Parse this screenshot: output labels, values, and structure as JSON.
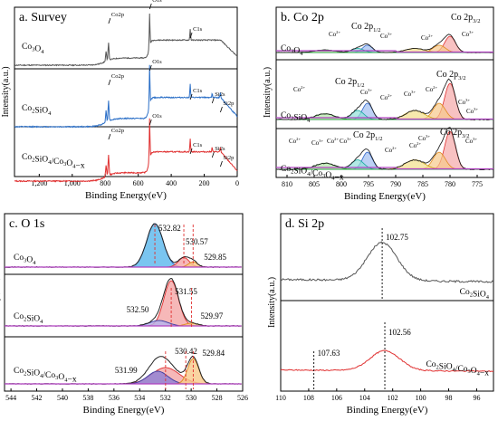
{
  "chart_data": [
    {
      "panel": "a",
      "type": "line",
      "title": "a. Survey",
      "xlabel": "Binding Energy(eV)",
      "ylabel": "Intensity(a.u.)",
      "xlim": [
        1350,
        0
      ],
      "x_reversed": true,
      "xticks": [
        1200,
        1000,
        800,
        600,
        400,
        200,
        0
      ],
      "xtick_labels": [
        "1,200",
        "1,000",
        "800",
        "600",
        "400",
        "200",
        "0"
      ],
      "series": [
        {
          "name": "Co3O4",
          "color": "#555555",
          "peaks": [
            {
              "label": "Co2p",
              "x": 780
            },
            {
              "label": "O1s",
              "x": 531
            },
            {
              "label": "C1s",
              "x": 285
            }
          ]
        },
        {
          "name": "Co2SiO4",
          "color": "#2b6fc7",
          "peaks": [
            {
              "label": "Co2p",
              "x": 780
            },
            {
              "label": "O1s",
              "x": 531
            },
            {
              "label": "C1s",
              "x": 285
            },
            {
              "label": "Si2s",
              "x": 152
            },
            {
              "label": "Si2p",
              "x": 102
            }
          ]
        },
        {
          "name": "Co2SiO4/Co3O4−x",
          "color": "#e03030",
          "peaks": [
            {
              "label": "Co2p",
              "x": 780
            },
            {
              "label": "O1s",
              "x": 531
            },
            {
              "label": "C1s",
              "x": 285
            },
            {
              "label": "Si2s",
              "x": 152
            },
            {
              "label": "Si2p",
              "x": 102
            }
          ]
        }
      ]
    },
    {
      "panel": "b",
      "type": "line",
      "title": "b. Co 2p",
      "xlabel": "Binding Energy(eV)",
      "ylabel": "Intensity(a.u.)",
      "xlim": [
        812,
        772
      ],
      "x_reversed": true,
      "xticks": [
        810,
        805,
        800,
        795,
        790,
        785,
        780,
        775
      ],
      "series": [
        {
          "name": "Co3O4",
          "labels": [
            "Co2+",
            "Co 2p1/2",
            "Co3+",
            "Co2+",
            "Co 2p3/2",
            "Co3+"
          ]
        },
        {
          "name": "Co2SiO4",
          "labels": [
            "Co2+",
            "Co 2p1/2",
            "Co3+",
            "Co2+",
            "Co3+",
            "Co 2p3/2",
            "Co3+",
            "Co2+",
            "Co3+"
          ]
        },
        {
          "name": "Co2SiO4/Co3O4−x",
          "labels": [
            "Co2+",
            "Co3+",
            "Co2+",
            "Co3+",
            "Co 2p1/2",
            "Co2+",
            "Co2+",
            "Co3+",
            "Co 2p3/2",
            "Co3+"
          ]
        }
      ]
    },
    {
      "panel": "c",
      "type": "line",
      "title": "c. O 1s",
      "xlabel": "Binding Energy(eV)",
      "ylabel": "Intensity(a.u.)",
      "xlim": [
        544.5,
        526
      ],
      "x_reversed": true,
      "xticks": [
        544,
        542,
        540,
        538,
        536,
        534,
        532,
        530,
        528,
        526
      ],
      "series": [
        {
          "name": "Co3O4",
          "peak_labels": [
            {
              "value": "532.82",
              "x": 532.82
            },
            {
              "value": "530.57",
              "x": 530.57
            },
            {
              "value": "529.85",
              "x": 529.85
            }
          ]
        },
        {
          "name": "Co2SiO4",
          "peak_labels": [
            {
              "value": "531.55",
              "x": 531.55
            },
            {
              "value": "532.50",
              "x": 532.5
            },
            {
              "value": "529.97",
              "x": 529.97
            }
          ]
        },
        {
          "name": "Co2SiO4/Co3O4−x",
          "peak_labels": [
            {
              "value": "530.42",
              "x": 530.42
            },
            {
              "value": "531.99",
              "x": 531.99
            },
            {
              "value": "529.84",
              "x": 529.84
            }
          ]
        }
      ]
    },
    {
      "panel": "d",
      "type": "line",
      "title": "d. Si 2p",
      "xlabel": "Binding Energy(eV)",
      "ylabel": "Intensity(a.u.)",
      "xlim": [
        110,
        94.8
      ],
      "x_reversed": true,
      "xticks": [
        110,
        108,
        106,
        104,
        102,
        100,
        98,
        96
      ],
      "series": [
        {
          "name": "Co2SiO4",
          "color": "#555555",
          "peak_labels": [
            {
              "value": "102.75",
              "x": 102.75
            }
          ]
        },
        {
          "name": "Co2SiO4/Co3O4−x",
          "color": "#e03030",
          "peak_labels": [
            {
              "value": "102.56",
              "x": 102.56
            },
            {
              "value": "107.63",
              "x": 107.63
            }
          ]
        }
      ]
    }
  ]
}
